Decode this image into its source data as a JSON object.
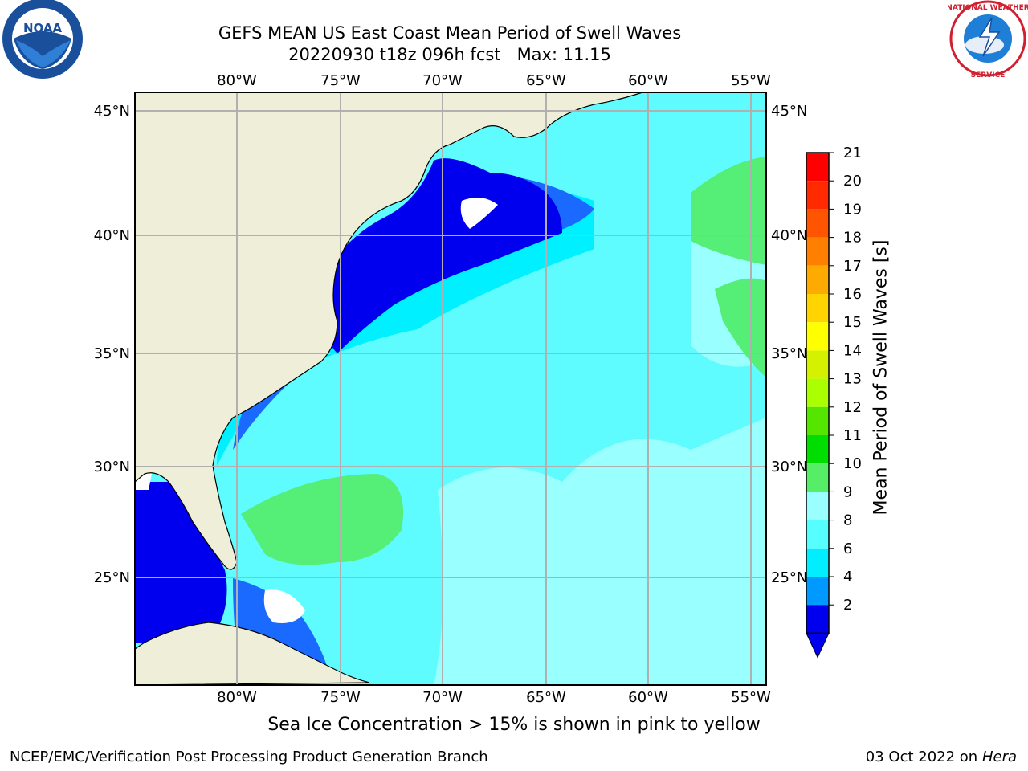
{
  "title": {
    "line1": "GEFS MEAN US East Coast Mean Period of Swell Waves",
    "line2": "20220930 t18z 096h fcst   Max: 11.15"
  },
  "logos": {
    "left": "NOAA",
    "right": "NATIONAL WEATHER SERVICE"
  },
  "map": {
    "lon_labels": [
      "80°W",
      "75°W",
      "70°W",
      "65°W",
      "60°W",
      "55°W"
    ],
    "lat_labels": [
      "45°N",
      "40°N",
      "35°N",
      "30°N",
      "25°N"
    ],
    "region": "US East Coast / Western North Atlantic",
    "lon_range": [
      -85,
      -54.5
    ],
    "lat_range": [
      20.5,
      46
    ],
    "grid": true
  },
  "colorbar": {
    "label": "Mean Period of Swell Waves [s]",
    "ticks": [
      "21",
      "20",
      "19",
      "18",
      "17",
      "16",
      "15",
      "14",
      "13",
      "12",
      "11",
      "10",
      "9",
      "8",
      "6",
      "4",
      "2"
    ],
    "colors": [
      "#ff0000",
      "#ff2a00",
      "#ff5500",
      "#ff8000",
      "#ffaa00",
      "#ffd400",
      "#ffff00",
      "#d4f200",
      "#aaff00",
      "#55e600",
      "#00dd00",
      "#55ee66",
      "#99ffff",
      "#55ffff",
      "#00eeff",
      "#0099ff",
      "#0000ee"
    ],
    "extend": "min"
  },
  "caption": "Sea Ice Concentration > 15% is shown in pink to yellow",
  "footer": {
    "left": "NCEP/EMC/Verification Post Processing Product Generation Branch",
    "date": "03 Oct 2022 on ",
    "host": "Hera"
  }
}
